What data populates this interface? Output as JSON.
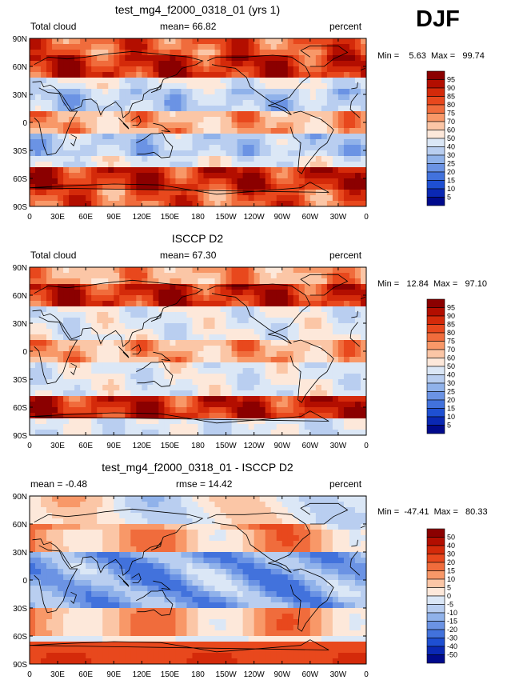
{
  "season": "DJF",
  "axes": {
    "lat_labels": [
      "90N",
      "60N",
      "30N",
      "0",
      "30S",
      "60S",
      "90S"
    ],
    "lon_labels": [
      "0",
      "30E",
      "60E",
      "90E",
      "120E",
      "150E",
      "180",
      "150W",
      "120W",
      "90W",
      "60W",
      "30W",
      "0"
    ]
  },
  "panels": [
    {
      "title": "test_mg4_f2000_0318_01 (yrs 1)",
      "left_label": "Total cloud",
      "mean_text": "mean=  66.82",
      "units": "percent",
      "minmax": "Min =    5.63  Max =   99.74",
      "colorbar": {
        "levels": [
          "95",
          "90",
          "85",
          "80",
          "75",
          "70",
          "60",
          "50",
          "40",
          "30",
          "25",
          "20",
          "15",
          "10",
          "5"
        ],
        "colors": [
          "#8b0000",
          "#b30e00",
          "#d42a0a",
          "#e8481d",
          "#f06c3c",
          "#f89868",
          "#fbc6a6",
          "#fde8da",
          "#dbe7f6",
          "#b9cef0",
          "#90b2ea",
          "#6b93e4",
          "#4272dc",
          "#1e4fd2",
          "#0a28b4",
          "#000a8c"
        ]
      },
      "map_field": "model"
    },
    {
      "title": "ISCCP D2",
      "left_label": "Total cloud",
      "mean_text": "mean=  67.30",
      "units": "percent",
      "minmax": "Min =   12.84  Max =   97.10",
      "colorbar": {
        "levels": [
          "95",
          "90",
          "85",
          "80",
          "75",
          "70",
          "60",
          "50",
          "40",
          "30",
          "25",
          "20",
          "15",
          "10",
          "5"
        ],
        "colors": [
          "#8b0000",
          "#b30e00",
          "#d42a0a",
          "#e8481d",
          "#f06c3c",
          "#f89868",
          "#fbc6a6",
          "#fde8da",
          "#dbe7f6",
          "#b9cef0",
          "#90b2ea",
          "#6b93e4",
          "#4272dc",
          "#1e4fd2",
          "#0a28b4",
          "#000a8c"
        ]
      },
      "map_field": "obs"
    },
    {
      "title": "test_mg4_f2000_0318_01 - ISCCP D2",
      "left_label": "mean =  -0.48",
      "mean_text": "rmse =  14.42",
      "units": "percent",
      "minmax": "Min =  -47.41  Max =   80.33",
      "colorbar": {
        "levels": [
          "50",
          "40",
          "30",
          "20",
          "15",
          "10",
          "5",
          "0",
          "-5",
          "-10",
          "-15",
          "-20",
          "-30",
          "-40",
          "-50"
        ],
        "colors": [
          "#8b0000",
          "#b30e00",
          "#d42a0a",
          "#e8481d",
          "#f06c3c",
          "#f89868",
          "#fbc6a6",
          "#fde8da",
          "#dbe7f6",
          "#b9cef0",
          "#90b2ea",
          "#6b93e4",
          "#4272dc",
          "#1e4fd2",
          "#0a28b4",
          "#000a8c"
        ]
      },
      "map_field": "diff"
    }
  ]
}
